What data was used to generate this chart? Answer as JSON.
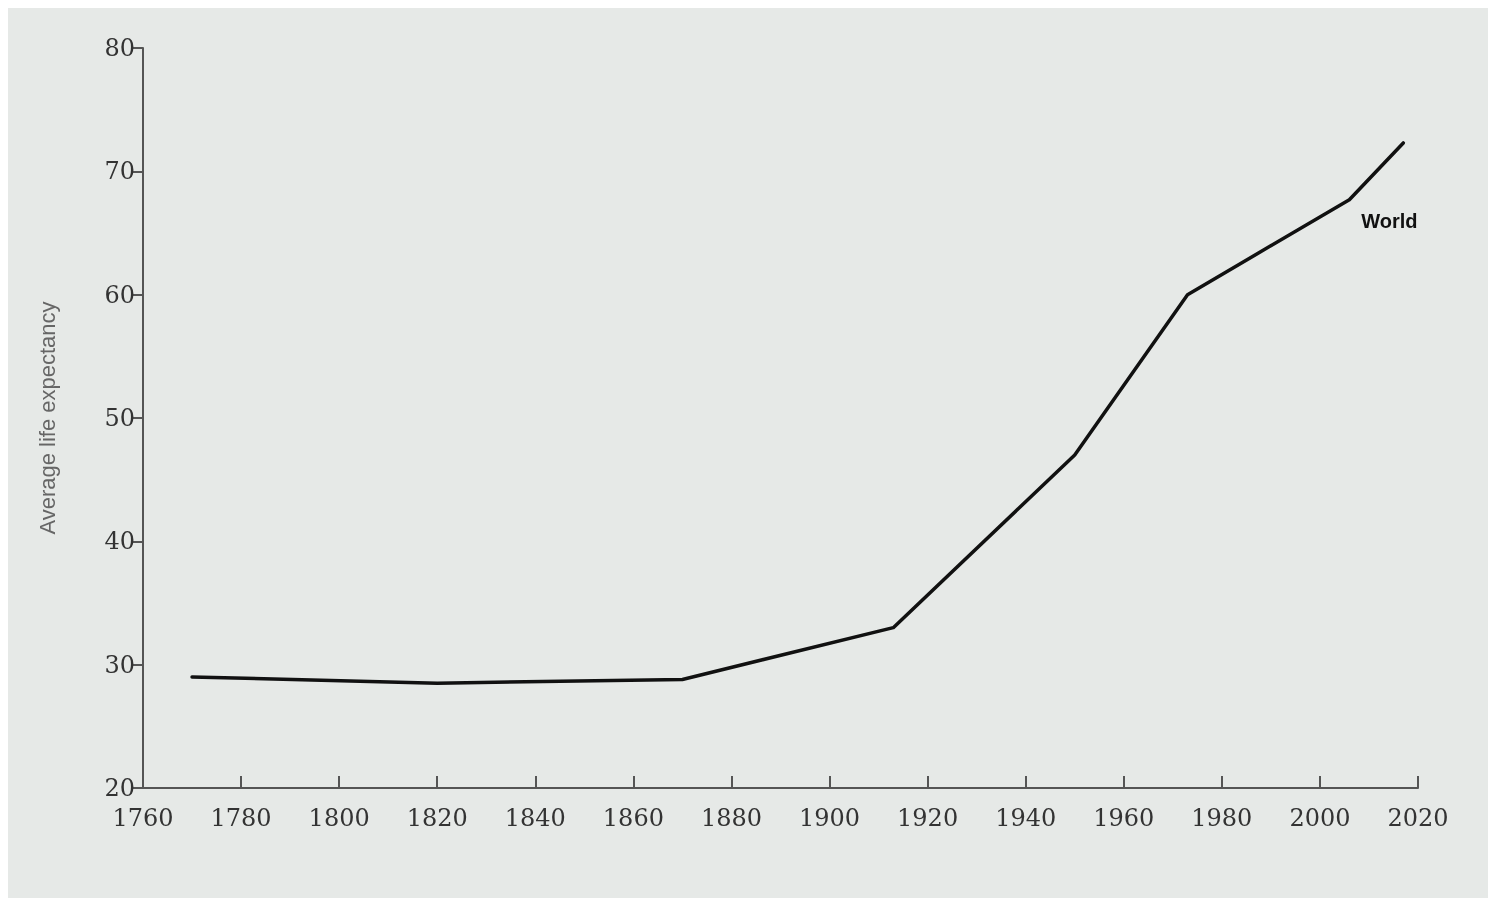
{
  "chart_data": {
    "type": "line",
    "ylabel": "Average life expectancy",
    "xlim": [
      1760,
      2020
    ],
    "xticks": [
      1760,
      1780,
      1800,
      1820,
      1840,
      1860,
      1880,
      1900,
      1920,
      1940,
      1960,
      1980,
      2000,
      2020
    ],
    "ylim": [
      20,
      80
    ],
    "yticks": [
      20,
      30,
      40,
      50,
      60,
      70,
      80
    ],
    "series": [
      {
        "name": "World",
        "color": "#111111",
        "x": [
          1770,
          1820,
          1870,
          1913,
          1950,
          1973,
          2006,
          2017
        ],
        "values": [
          29,
          28.5,
          28.8,
          33,
          47,
          60,
          67.7,
          72.3
        ]
      }
    ],
    "grid": false,
    "legend": false,
    "marker": "none",
    "line_style": "solid"
  }
}
